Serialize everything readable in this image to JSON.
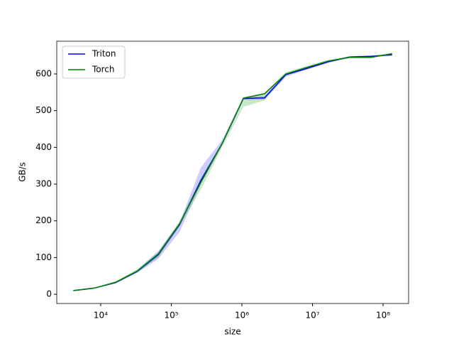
{
  "chart_data": {
    "type": "line",
    "xlabel": "size",
    "ylabel": "GB/s",
    "x": [
      4096,
      8192,
      16384,
      32768,
      65536,
      131072,
      262144,
      524288,
      1048576,
      2097152,
      4194304,
      8388608,
      16777216,
      33554432,
      67108864,
      134217728
    ],
    "series": [
      {
        "name": "Triton",
        "color": "#0000ff",
        "values": [
          10,
          17,
          32,
          62,
          108,
          190,
          310,
          410,
          533,
          535,
          598,
          615,
          633,
          646,
          648,
          652
        ],
        "lower": [
          9,
          16,
          31,
          58,
          97,
          170,
          300,
          405,
          530,
          530,
          592,
          612,
          630,
          644,
          646,
          650
        ],
        "upper": [
          11,
          18,
          34,
          66,
          118,
          195,
          345,
          420,
          536,
          540,
          600,
          618,
          636,
          648,
          650,
          654
        ]
      },
      {
        "name": "Torch",
        "color": "#008000",
        "values": [
          10,
          17,
          33,
          63,
          110,
          192,
          305,
          410,
          534,
          546,
          600,
          618,
          635,
          645,
          645,
          655
        ],
        "lower": [
          9,
          16,
          31,
          60,
          100,
          185,
          285,
          400,
          510,
          528,
          596,
          614,
          632,
          643,
          643,
          652
        ],
        "upper": [
          11,
          18,
          36,
          68,
          115,
          200,
          315,
          415,
          537,
          548,
          605,
          622,
          638,
          648,
          648,
          658
        ]
      }
    ],
    "xscale": "log",
    "xlim": [
      2383,
      230000000
    ],
    "xticks": [
      {
        "value": 10000,
        "label": "10⁴"
      },
      {
        "value": 100000,
        "label": "10⁵"
      },
      {
        "value": 1000000,
        "label": "10⁶"
      },
      {
        "value": 10000000,
        "label": "10⁷"
      },
      {
        "value": 100000000,
        "label": "10⁸"
      }
    ],
    "ylim": [
      -25,
      689
    ],
    "yticks": [
      0,
      100,
      200,
      300,
      400,
      500,
      600
    ],
    "legend": "upper left"
  }
}
